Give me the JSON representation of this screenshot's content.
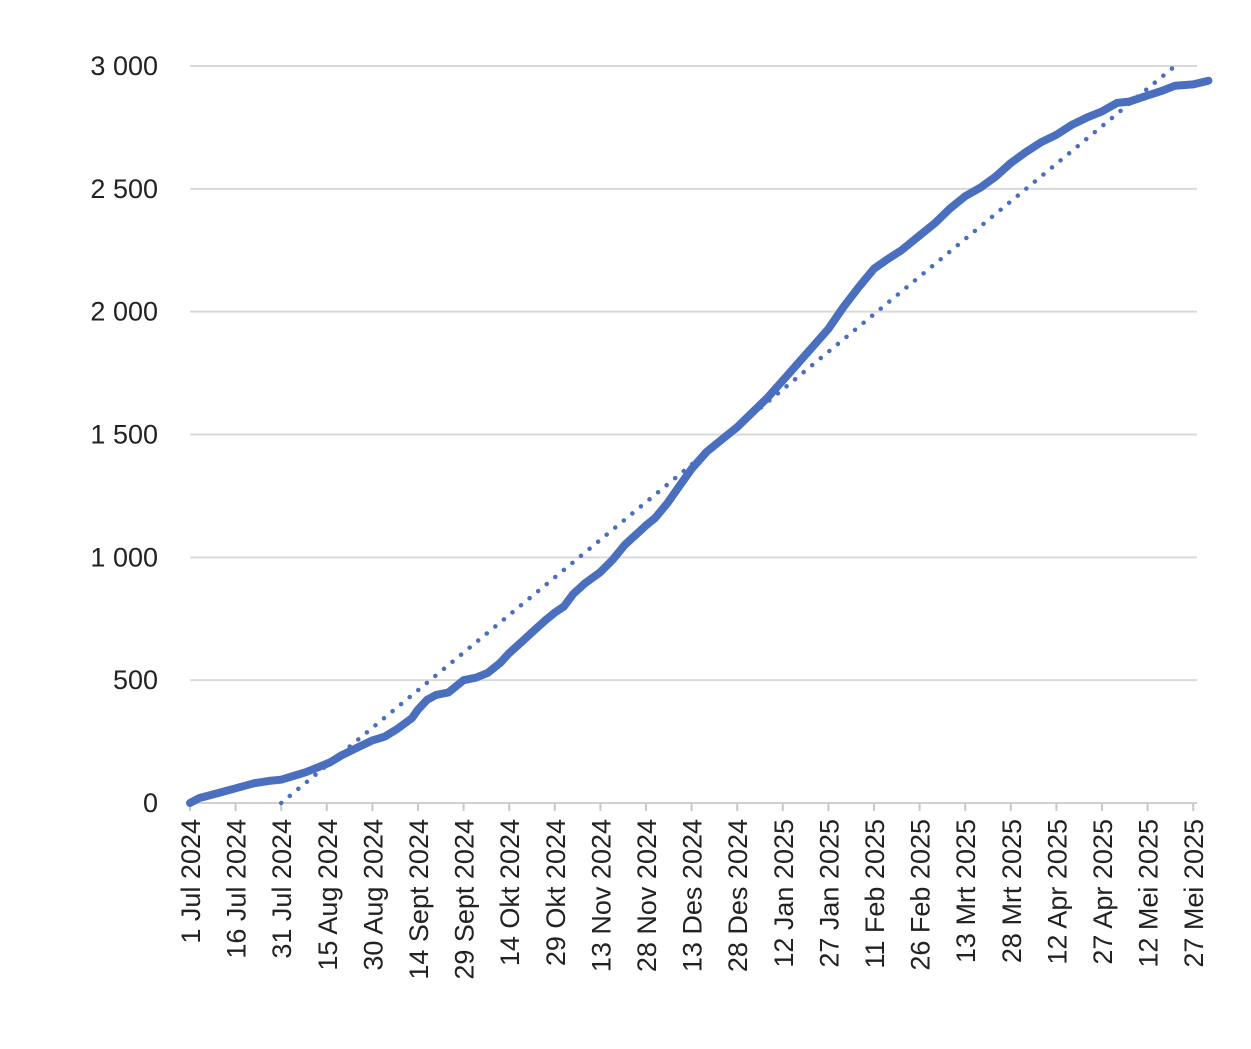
{
  "chart_data": {
    "type": "line",
    "title": "",
    "xlabel": "",
    "ylabel": "",
    "ylim": [
      0,
      3000
    ],
    "y_ticks": [
      {
        "value": 0,
        "label": "0"
      },
      {
        "value": 500,
        "label": "500"
      },
      {
        "value": 1000,
        "label": "1 000"
      },
      {
        "value": 1500,
        "label": "1 500"
      },
      {
        "value": 2000,
        "label": "2 000"
      },
      {
        "value": 2500,
        "label": "2 500"
      },
      {
        "value": 3000,
        "label": "3 000"
      }
    ],
    "x_ticks": [
      {
        "date": "2024-07-01",
        "label": "1 Jul 2024"
      },
      {
        "date": "2024-07-16",
        "label": "16 Jul 2024"
      },
      {
        "date": "2024-07-31",
        "label": "31 Jul 2024"
      },
      {
        "date": "2024-08-15",
        "label": "15 Aug 2024"
      },
      {
        "date": "2024-08-30",
        "label": "30 Aug 2024"
      },
      {
        "date": "2024-09-14",
        "label": "14 Sept 2024"
      },
      {
        "date": "2024-09-29",
        "label": "29 Sept 2024"
      },
      {
        "date": "2024-10-14",
        "label": "14 Okt 2024"
      },
      {
        "date": "2024-10-29",
        "label": "29 Okt 2024"
      },
      {
        "date": "2024-11-13",
        "label": "13 Nov 2024"
      },
      {
        "date": "2024-11-28",
        "label": "28 Nov 2024"
      },
      {
        "date": "2024-12-13",
        "label": "13 Des 2024"
      },
      {
        "date": "2024-12-28",
        "label": "28 Des 2024"
      },
      {
        "date": "2025-01-12",
        "label": "12 Jan 2025"
      },
      {
        "date": "2025-01-27",
        "label": "27 Jan 2025"
      },
      {
        "date": "2025-02-11",
        "label": "11 Feb 2025"
      },
      {
        "date": "2025-02-26",
        "label": "26 Feb 2025"
      },
      {
        "date": "2025-03-13",
        "label": "13 Mrt 2025"
      },
      {
        "date": "2025-03-28",
        "label": "28 Mrt 2025"
      },
      {
        "date": "2025-04-12",
        "label": "12 Apr 2025"
      },
      {
        "date": "2025-04-27",
        "label": "27 Apr 2025"
      },
      {
        "date": "2025-05-12",
        "label": "12 Mei 2025"
      },
      {
        "date": "2025-05-27",
        "label": "27 Mei 2025"
      }
    ],
    "grid": true,
    "legend": "none",
    "series": [
      {
        "style": "solid",
        "color": "#4a6fbf",
        "points": [
          {
            "x": "2024-07-01",
            "y": 0
          },
          {
            "x": "2024-07-04",
            "y": 20
          },
          {
            "x": "2024-07-10",
            "y": 40
          },
          {
            "x": "2024-07-16",
            "y": 60
          },
          {
            "x": "2024-07-22",
            "y": 80
          },
          {
            "x": "2024-07-27",
            "y": 90
          },
          {
            "x": "2024-07-31",
            "y": 95
          },
          {
            "x": "2024-08-04",
            "y": 110
          },
          {
            "x": "2024-08-08",
            "y": 125
          },
          {
            "x": "2024-08-12",
            "y": 145
          },
          {
            "x": "2024-08-16",
            "y": 165
          },
          {
            "x": "2024-08-20",
            "y": 195
          },
          {
            "x": "2024-08-25",
            "y": 225
          },
          {
            "x": "2024-08-30",
            "y": 255
          },
          {
            "x": "2024-09-03",
            "y": 270
          },
          {
            "x": "2024-09-07",
            "y": 300
          },
          {
            "x": "2024-09-12",
            "y": 345
          },
          {
            "x": "2024-09-14",
            "y": 380
          },
          {
            "x": "2024-09-17",
            "y": 420
          },
          {
            "x": "2024-09-20",
            "y": 440
          },
          {
            "x": "2024-09-24",
            "y": 450
          },
          {
            "x": "2024-09-29",
            "y": 500
          },
          {
            "x": "2024-10-03",
            "y": 510
          },
          {
            "x": "2024-10-07",
            "y": 530
          },
          {
            "x": "2024-10-11",
            "y": 570
          },
          {
            "x": "2024-10-14",
            "y": 610
          },
          {
            "x": "2024-10-18",
            "y": 655
          },
          {
            "x": "2024-10-22",
            "y": 700
          },
          {
            "x": "2024-10-26",
            "y": 745
          },
          {
            "x": "2024-10-29",
            "y": 775
          },
          {
            "x": "2024-11-01",
            "y": 800
          },
          {
            "x": "2024-11-04",
            "y": 850
          },
          {
            "x": "2024-11-08",
            "y": 895
          },
          {
            "x": "2024-11-13",
            "y": 940
          },
          {
            "x": "2024-11-17",
            "y": 990
          },
          {
            "x": "2024-11-21",
            "y": 1050
          },
          {
            "x": "2024-11-28",
            "y": 1130
          },
          {
            "x": "2024-12-01",
            "y": 1160
          },
          {
            "x": "2024-12-05",
            "y": 1220
          },
          {
            "x": "2024-12-09",
            "y": 1290
          },
          {
            "x": "2024-12-13",
            "y": 1360
          },
          {
            "x": "2024-12-18",
            "y": 1430
          },
          {
            "x": "2024-12-23",
            "y": 1480
          },
          {
            "x": "2024-12-28",
            "y": 1530
          },
          {
            "x": "2025-01-02",
            "y": 1590
          },
          {
            "x": "2025-01-07",
            "y": 1650
          },
          {
            "x": "2025-01-12",
            "y": 1720
          },
          {
            "x": "2025-01-17",
            "y": 1790
          },
          {
            "x": "2025-01-22",
            "y": 1860
          },
          {
            "x": "2025-01-27",
            "y": 1930
          },
          {
            "x": "2025-02-01",
            "y": 2020
          },
          {
            "x": "2025-02-06",
            "y": 2100
          },
          {
            "x": "2025-02-11",
            "y": 2175
          },
          {
            "x": "2025-02-15",
            "y": 2210
          },
          {
            "x": "2025-02-20",
            "y": 2250
          },
          {
            "x": "2025-02-26",
            "y": 2310
          },
          {
            "x": "2025-03-03",
            "y": 2360
          },
          {
            "x": "2025-03-08",
            "y": 2420
          },
          {
            "x": "2025-03-13",
            "y": 2470
          },
          {
            "x": "2025-03-18",
            "y": 2505
          },
          {
            "x": "2025-03-23",
            "y": 2550
          },
          {
            "x": "2025-03-28",
            "y": 2605
          },
          {
            "x": "2025-04-02",
            "y": 2650
          },
          {
            "x": "2025-04-07",
            "y": 2690
          },
          {
            "x": "2025-04-12",
            "y": 2720
          },
          {
            "x": "2025-04-17",
            "y": 2760
          },
          {
            "x": "2025-04-22",
            "y": 2790
          },
          {
            "x": "2025-04-27",
            "y": 2815
          },
          {
            "x": "2025-05-02",
            "y": 2850
          },
          {
            "x": "2025-05-06",
            "y": 2855
          },
          {
            "x": "2025-05-12",
            "y": 2880
          },
          {
            "x": "2025-05-17",
            "y": 2900
          },
          {
            "x": "2025-05-21",
            "y": 2920
          },
          {
            "x": "2025-05-27",
            "y": 2925
          },
          {
            "x": "2025-06-01",
            "y": 2940
          }
        ]
      },
      {
        "style": "dotted",
        "color": "#4a6fbf",
        "points": [
          {
            "x": "2024-07-31",
            "y": 0
          },
          {
            "x": "2025-05-21",
            "y": 3000
          }
        ]
      }
    ]
  }
}
